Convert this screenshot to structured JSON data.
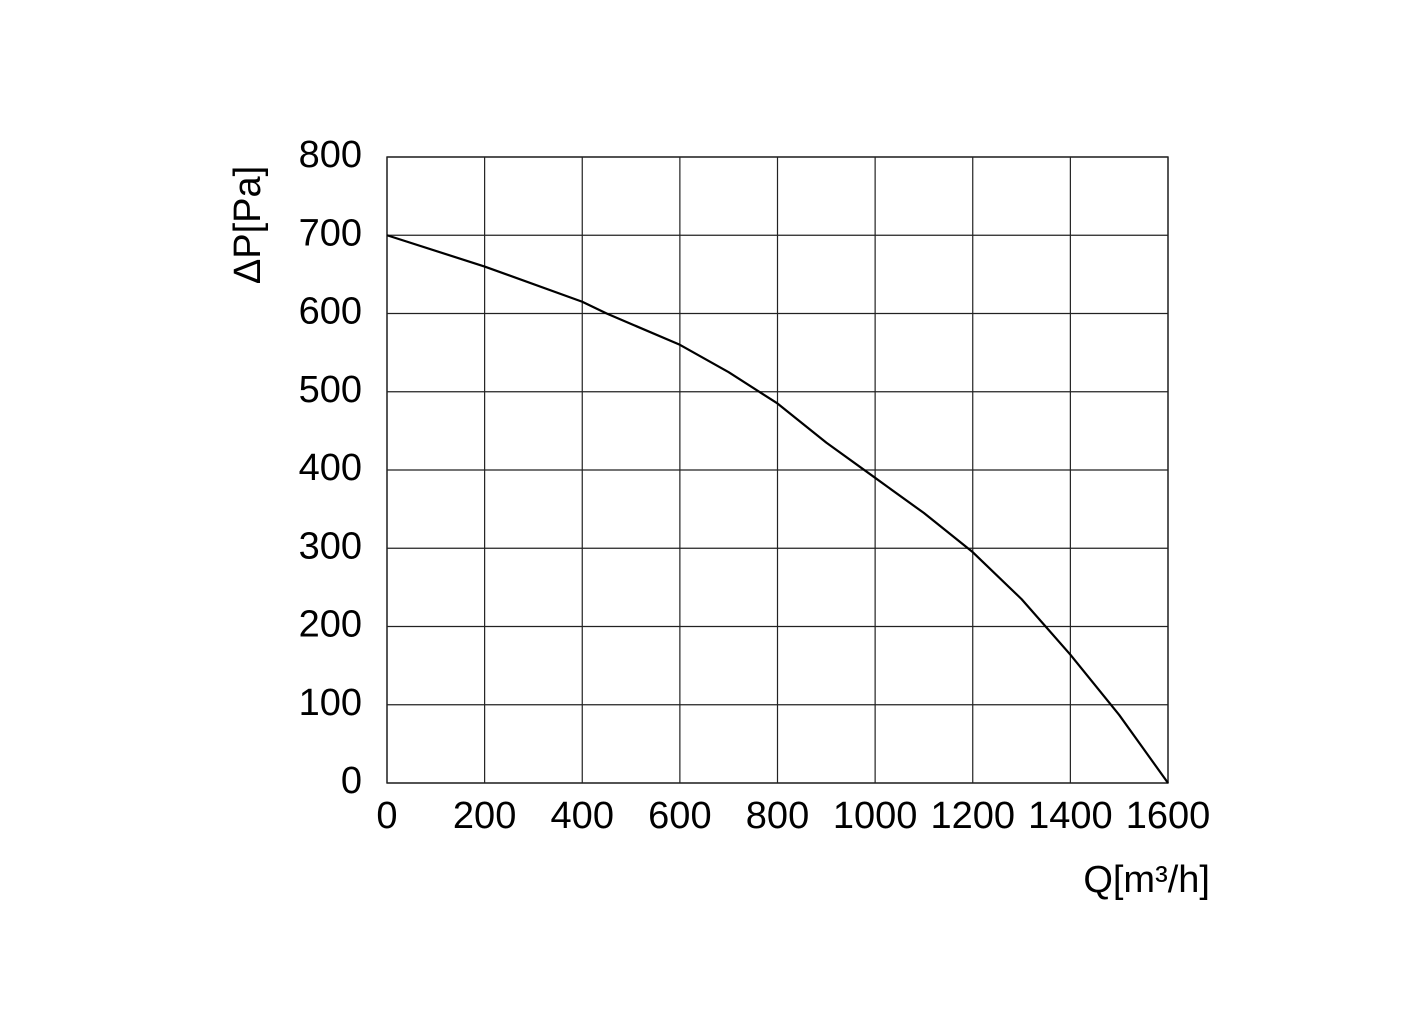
{
  "chart_data": {
    "type": "line",
    "xlabel": "Q[m³/h]",
    "ylabel": "ΔP[Pa]",
    "x": [
      0,
      200,
      400,
      450,
      600,
      700,
      800,
      900,
      1000,
      1100,
      1200,
      1300,
      1400,
      1500,
      1600
    ],
    "values": [
      700,
      660,
      615,
      600,
      560,
      525,
      485,
      435,
      390,
      345,
      295,
      235,
      164,
      87,
      0
    ],
    "color": "#000000",
    "xlim": [
      0,
      1600
    ],
    "xticks": [
      0,
      200,
      400,
      600,
      800,
      1000,
      1200,
      1400,
      1600
    ],
    "ylim": [
      0,
      800
    ],
    "yticks": [
      0,
      100,
      200,
      300,
      400,
      500,
      600,
      700,
      800
    ],
    "grid": true
  }
}
